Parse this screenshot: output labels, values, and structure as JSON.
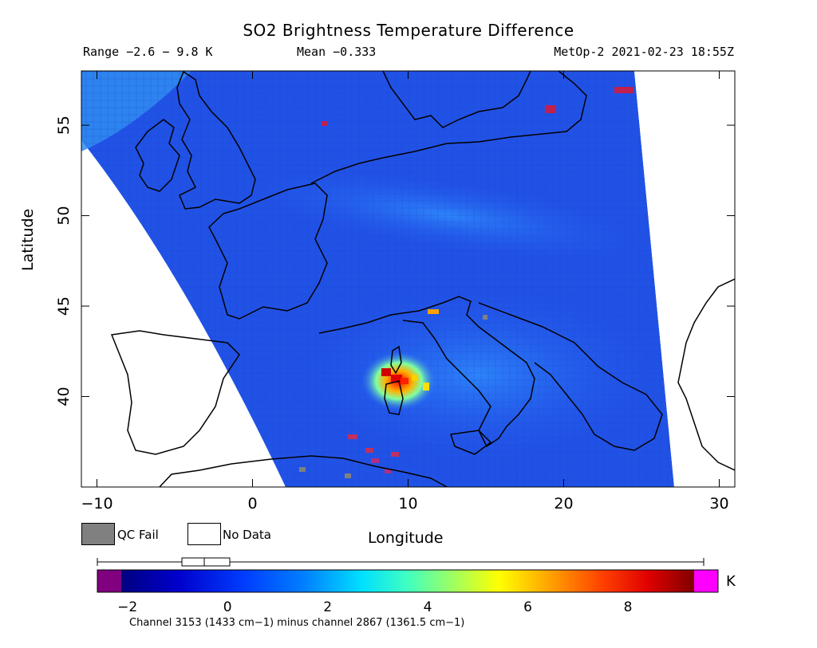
{
  "header": {
    "title": "SO2 Brightness Temperature Difference",
    "range": "Range −2.6 − 9.8 K",
    "mean": "Mean −0.333",
    "satellite_time": "MetOp-2 2021-02-23 18:55Z"
  },
  "axes": {
    "xlabel": "Longitude",
    "ylabel": "Latitude",
    "x_ticks": [
      "−10",
      "0",
      "10",
      "20",
      "30"
    ],
    "y_ticks": [
      "55",
      "50",
      "45",
      "40"
    ],
    "x_range": [
      -11,
      31
    ],
    "y_range": [
      35,
      58
    ]
  },
  "legend": {
    "qc_fail": "QC Fail",
    "no_data": "No Data",
    "qc_fail_color": "#808080",
    "no_data_color": "#ffffff"
  },
  "colorbar": {
    "unit": "K",
    "ticks": [
      "−2",
      "0",
      "2",
      "4",
      "6",
      "8"
    ],
    "range": [
      -2.6,
      9.8
    ],
    "low_color": "#800080",
    "high_color": "#ff00ff",
    "stops": [
      "#000080",
      "#0000cd",
      "#0040ff",
      "#0080ff",
      "#00e0ff",
      "#40ffc0",
      "#a0ff60",
      "#ffff00",
      "#ffa000",
      "#ff4000",
      "#e00000",
      "#800000"
    ]
  },
  "footnote": "Channel 3153 (1433 cm−1) minus channel 2867 (1361.5 cm−1)",
  "map": {
    "background_color": "#2050e8",
    "plume_center_lonlat": [
      9.0,
      41.0
    ],
    "plume_peak_value_K": 9.8
  }
}
